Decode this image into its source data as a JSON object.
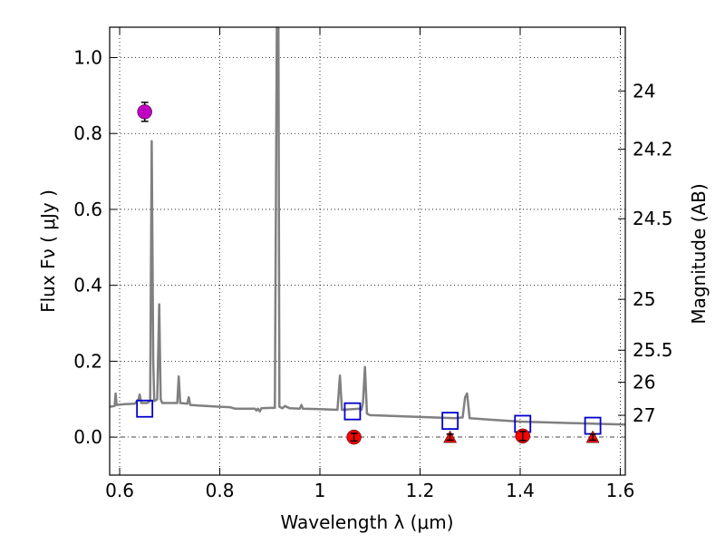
{
  "chart_data": {
    "type": "line",
    "xlabel": "Wavelength  λ (μm)",
    "ylabel": "Flux  Fν  ( μJy )",
    "ylabel_right": "Magnitude (AB)",
    "xlim": [
      0.58,
      1.61
    ],
    "ylim": [
      -0.1,
      1.08
    ],
    "grid": "dotted",
    "x_ticks": [
      {
        "value": 0.6,
        "label": "0.6"
      },
      {
        "value": 0.8,
        "label": "0.8"
      },
      {
        "value": 1.0,
        "label": "1"
      },
      {
        "value": 1.2,
        "label": "1.2"
      },
      {
        "value": 1.4,
        "label": "1.4"
      },
      {
        "value": 1.6,
        "label": "1.6"
      }
    ],
    "y_ticks": [
      {
        "value": 0.0,
        "label": "0.0"
      },
      {
        "value": 0.2,
        "label": "0.2"
      },
      {
        "value": 0.4,
        "label": "0.4"
      },
      {
        "value": 0.6,
        "label": "0.6"
      },
      {
        "value": 0.8,
        "label": "0.8"
      },
      {
        "value": 1.0,
        "label": "1.0"
      }
    ],
    "mag_ticks": [
      {
        "value": 24,
        "label": "24"
      },
      {
        "value": 24.2,
        "label": "24.2"
      },
      {
        "value": 24.5,
        "label": "24.5"
      },
      {
        "value": 25,
        "label": "25"
      },
      {
        "value": 25.5,
        "label": "25.5"
      },
      {
        "value": 26,
        "label": "26"
      },
      {
        "value": 27,
        "label": "27"
      }
    ],
    "spectrum": {
      "color": "#808080",
      "points": [
        [
          0.58,
          0.08
        ],
        [
          0.59,
          0.082
        ],
        [
          0.592,
          0.115
        ],
        [
          0.594,
          0.085
        ],
        [
          0.61,
          0.087
        ],
        [
          0.63,
          0.088
        ],
        [
          0.638,
          0.1
        ],
        [
          0.64,
          0.112
        ],
        [
          0.643,
          0.09
        ],
        [
          0.655,
          0.09
        ],
        [
          0.661,
          0.095
        ],
        [
          0.664,
          0.78
        ],
        [
          0.667,
          0.2
        ],
        [
          0.669,
          0.095
        ],
        [
          0.675,
          0.1
        ],
        [
          0.679,
          0.35
        ],
        [
          0.682,
          0.1
        ],
        [
          0.685,
          0.09
        ],
        [
          0.7,
          0.09
        ],
        [
          0.715,
          0.09
        ],
        [
          0.718,
          0.16
        ],
        [
          0.721,
          0.09
        ],
        [
          0.735,
          0.088
        ],
        [
          0.738,
          0.105
        ],
        [
          0.741,
          0.085
        ],
        [
          0.76,
          0.083
        ],
        [
          0.8,
          0.08
        ],
        [
          0.82,
          0.079
        ],
        [
          0.83,
          0.075
        ],
        [
          0.87,
          0.075
        ],
        [
          0.873,
          0.07
        ],
        [
          0.876,
          0.075
        ],
        [
          0.88,
          0.068
        ],
        [
          0.883,
          0.076
        ],
        [
          0.9,
          0.077
        ],
        [
          0.91,
          0.077
        ],
        [
          0.914,
          1.1
        ],
        [
          0.917,
          1.1
        ],
        [
          0.919,
          0.08
        ],
        [
          0.925,
          0.076
        ],
        [
          0.93,
          0.082
        ],
        [
          0.94,
          0.076
        ],
        [
          0.96,
          0.075
        ],
        [
          0.963,
          0.085
        ],
        [
          0.966,
          0.075
        ],
        [
          1.0,
          0.074
        ],
        [
          1.035,
          0.072
        ],
        [
          1.04,
          0.162
        ],
        [
          1.044,
          0.072
        ],
        [
          1.08,
          0.075
        ],
        [
          1.083,
          0.072
        ],
        [
          1.086,
          0.09
        ],
        [
          1.09,
          0.185
        ],
        [
          1.094,
          0.062
        ],
        [
          1.1,
          0.058
        ],
        [
          1.2,
          0.053
        ],
        [
          1.27,
          0.05
        ],
        [
          1.285,
          0.052
        ],
        [
          1.29,
          0.105
        ],
        [
          1.294,
          0.115
        ],
        [
          1.299,
          0.05
        ],
        [
          1.35,
          0.045
        ],
        [
          1.4,
          0.041
        ],
        [
          1.5,
          0.037
        ],
        [
          1.61,
          0.033
        ]
      ]
    },
    "model_photometry": {
      "color": "#0000cc",
      "points": [
        [
          0.65,
          0.075
        ],
        [
          1.065,
          0.068
        ],
        [
          1.26,
          0.043
        ],
        [
          1.405,
          0.035
        ],
        [
          1.545,
          0.03
        ]
      ]
    },
    "detection": {
      "color": "#c000c0",
      "x": 0.65,
      "y": 0.857,
      "err": 0.025
    },
    "measurements": {
      "color": "#ff0000",
      "points": [
        {
          "x": 1.068,
          "y": 0.0,
          "err": 0.01,
          "marker": "circle"
        },
        {
          "x": 1.26,
          "y": 0.0,
          "err": 0.008,
          "marker": "triangle"
        },
        {
          "x": 1.405,
          "y": 0.003,
          "err": 0.012,
          "marker": "circle"
        },
        {
          "x": 1.545,
          "y": 0.0,
          "err": 0.008,
          "marker": "triangle"
        }
      ]
    }
  }
}
